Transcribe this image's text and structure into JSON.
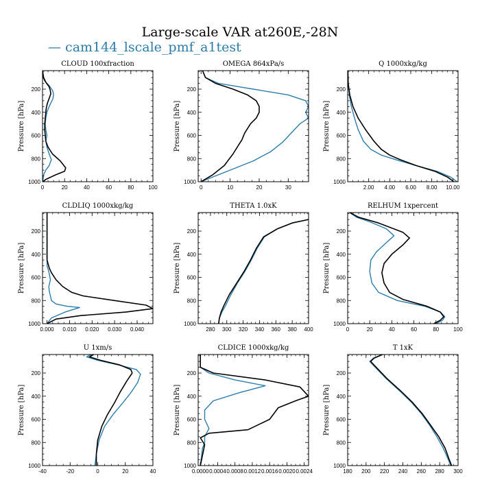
{
  "figure": {
    "title": "Large-scale VAR at260E,-28N",
    "legend": [
      {
        "name": "cam144_lscale_pmf_a1test",
        "color": "#2b7bab"
      }
    ],
    "ylabel": "Pressure [hPa]"
  },
  "chart_data": [
    {
      "type": "line",
      "title": "CLOUD  100xfraction",
      "xlabel": "",
      "ylabel": "Pressure [hPa]",
      "xlim": [
        0,
        100
      ],
      "ylim": [
        1000,
        40
      ],
      "y_inverted": true,
      "xticks": [
        0,
        20,
        40,
        60,
        80,
        100
      ],
      "xtick_labels": [
        "0",
        "20",
        "40",
        "60",
        "80",
        "100"
      ],
      "yticks": [
        200,
        400,
        600,
        800,
        1000
      ],
      "ytick_labels": [
        "200",
        "400",
        "600",
        "800",
        "1000"
      ],
      "series": [
        {
          "name": "cam144_lscale_pmf_a1test",
          "color": "#2b7bab",
          "x": [
            0,
            0.5,
            2,
            6,
            9,
            10,
            9.5,
            8,
            6,
            4,
            3,
            2.5,
            3,
            4,
            3,
            4,
            6,
            8,
            6,
            3,
            1,
            0.5,
            0.5
          ],
          "y": [
            40,
            100,
            130,
            170,
            210,
            240,
            280,
            310,
            350,
            400,
            450,
            500,
            550,
            600,
            650,
            700,
            760,
            810,
            860,
            900,
            940,
            980,
            1000
          ]
        },
        {
          "name": "",
          "color": "#000000",
          "x": [
            0,
            1,
            3,
            6,
            7,
            7.5,
            6,
            4.5,
            3.5,
            3,
            2.5,
            2,
            2,
            2.5,
            3,
            5,
            9,
            16,
            21,
            20,
            12,
            3,
            0.5
          ],
          "y": [
            40,
            100,
            140,
            180,
            210,
            240,
            280,
            320,
            360,
            400,
            450,
            500,
            550,
            600,
            650,
            700,
            760,
            820,
            880,
            910,
            940,
            980,
            1000
          ]
        }
      ]
    },
    {
      "type": "line",
      "title": "OMEGA  864xPa/s",
      "xlabel": "",
      "ylabel": "Pressure [hPa]",
      "xlim": [
        -1,
        37
      ],
      "ylim": [
        1000,
        40
      ],
      "y_inverted": true,
      "xticks": [
        0,
        10,
        20,
        30
      ],
      "xtick_labels": [
        "0",
        "10",
        "20",
        "30"
      ],
      "yticks": [
        200,
        400,
        600,
        800,
        1000
      ],
      "ytick_labels": [
        "200",
        "400",
        "600",
        "800",
        "1000"
      ],
      "series": [
        {
          "name": "cam144_lscale_pmf_a1test",
          "color": "#2b7bab",
          "x": [
            0.5,
            1.5,
            6,
            18,
            30,
            36,
            37,
            36,
            37,
            34,
            31,
            28,
            24,
            18,
            10,
            3,
            0
          ],
          "y": [
            40,
            100,
            150,
            200,
            250,
            300,
            350,
            400,
            450,
            500,
            580,
            660,
            740,
            820,
            900,
            970,
            1000
          ]
        },
        {
          "name": "",
          "color": "#000000",
          "x": [
            0.5,
            1.5,
            5,
            11,
            16,
            19,
            20,
            20,
            19,
            17,
            15,
            14,
            13.5,
            11,
            8,
            4,
            0
          ],
          "y": [
            40,
            100,
            150,
            200,
            250,
            300,
            350,
            400,
            450,
            500,
            580,
            640,
            660,
            760,
            860,
            940,
            1000
          ]
        }
      ]
    },
    {
      "type": "line",
      "title": "Q  1000xkg/kg",
      "xlabel": "",
      "ylabel": "Pressure [hPa]",
      "xlim": [
        0,
        10.5
      ],
      "ylim": [
        1000,
        40
      ],
      "y_inverted": true,
      "xticks": [
        2,
        4,
        6,
        8,
        10
      ],
      "xtick_labels": [
        "2.00",
        "4.00",
        "6.00",
        "8.00",
        "10.00"
      ],
      "yticks": [
        200,
        400,
        600,
        800,
        1000
      ],
      "ytick_labels": [
        "200",
        "400",
        "600",
        "800",
        "1000"
      ],
      "series": [
        {
          "name": "cam144_lscale_pmf_a1test",
          "color": "#2b7bab",
          "x": [
            0.02,
            0.05,
            0.15,
            0.35,
            0.65,
            1.0,
            1.5,
            2.2,
            3.2,
            4.6,
            6.5,
            8.5,
            9.8,
            10.4
          ],
          "y": [
            40,
            150,
            250,
            350,
            450,
            550,
            650,
            720,
            770,
            810,
            860,
            910,
            960,
            1000
          ]
        },
        {
          "name": "",
          "color": "#000000",
          "x": [
            0.02,
            0.05,
            0.2,
            0.5,
            1.0,
            1.7,
            2.5,
            3.2,
            4.0,
            5.0,
            6.5,
            8.3,
            9.5,
            10.1
          ],
          "y": [
            40,
            150,
            250,
            350,
            450,
            550,
            650,
            720,
            770,
            810,
            860,
            910,
            960,
            1000
          ]
        }
      ]
    },
    {
      "type": "line",
      "title": "CLDLIQ  1000xkg/kg",
      "xlabel": "",
      "ylabel": "Pressure [hPa]",
      "xlim": [
        -0.002,
        0.047
      ],
      "ylim": [
        1000,
        40
      ],
      "y_inverted": true,
      "xticks": [
        0,
        0.01,
        0.02,
        0.03,
        0.04
      ],
      "xtick_labels": [
        "0.000",
        "0.010",
        "0.020",
        "0.030",
        "0.040"
      ],
      "yticks": [
        200,
        400,
        600,
        800,
        1000
      ],
      "ytick_labels": [
        "200",
        "400",
        "600",
        "800",
        "1000"
      ],
      "series": [
        {
          "name": "cam144_lscale_pmf_a1test",
          "color": "#2b7bab",
          "x": [
            0,
            0,
            0,
            0.0008,
            0.0015,
            0.0008,
            0.001,
            0.0015,
            0.002,
            0.004,
            0.009,
            0.0145,
            0.008,
            0.002,
            0
          ],
          "y": [
            40,
            400,
            500,
            550,
            620,
            680,
            720,
            760,
            800,
            830,
            850,
            860,
            900,
            950,
            1000
          ]
        },
        {
          "name": "",
          "color": "#000000",
          "x": [
            0,
            0,
            0.001,
            0.002,
            0.004,
            0.007,
            0.011,
            0.016,
            0.03,
            0.044,
            0.047,
            0.035,
            0.015,
            0.004,
            0
          ],
          "y": [
            40,
            450,
            520,
            560,
            620,
            680,
            730,
            760,
            800,
            840,
            870,
            900,
            930,
            960,
            1000
          ]
        }
      ]
    },
    {
      "type": "line",
      "title": "THETA  1.0xK",
      "xlabel": "",
      "ylabel": "Pressure [hPa]",
      "xlim": [
        265,
        400
      ],
      "ylim": [
        1000,
        40
      ],
      "y_inverted": true,
      "xticks": [
        280,
        300,
        320,
        340,
        360,
        380,
        400
      ],
      "xtick_labels": [
        "280",
        "300",
        "320",
        "340",
        "360",
        "380",
        "400"
      ],
      "yticks": [
        200,
        400,
        600,
        800,
        1000
      ],
      "ytick_labels": [
        "200",
        "400",
        "600",
        "800",
        "1000"
      ],
      "series": [
        {
          "name": "cam144_lscale_pmf_a1test",
          "color": "#2b7bab",
          "x": [
            290,
            291,
            294,
            298,
            305,
            313,
            322,
            330,
            337,
            346,
            362,
            380,
            400
          ],
          "y": [
            1000,
            950,
            900,
            850,
            750,
            650,
            550,
            450,
            350,
            250,
            180,
            130,
            100
          ]
        },
        {
          "name": "",
          "color": "#000000",
          "x": [
            290,
            291,
            293,
            296,
            303,
            312,
            321,
            329,
            336,
            345,
            362,
            380,
            400
          ],
          "y": [
            1000,
            950,
            900,
            850,
            750,
            650,
            550,
            450,
            350,
            250,
            180,
            130,
            100
          ]
        }
      ]
    },
    {
      "type": "line",
      "title": "RELHUM  1xpercent",
      "xlabel": "",
      "ylabel": "Pressure [hPa]",
      "xlim": [
        0,
        100
      ],
      "ylim": [
        1000,
        40
      ],
      "y_inverted": true,
      "xticks": [
        0,
        20,
        40,
        60,
        80,
        100
      ],
      "xtick_labels": [
        "0",
        "20",
        "40",
        "60",
        "80",
        "100"
      ],
      "yticks": [
        200,
        400,
        600,
        800,
        1000
      ],
      "ytick_labels": [
        "200",
        "400",
        "600",
        "800",
        "1000"
      ],
      "series": [
        {
          "name": "cam144_lscale_pmf_a1test",
          "color": "#2b7bab",
          "x": [
            2,
            8,
            20,
            35,
            42,
            35,
            26,
            21,
            20,
            22,
            28,
            45,
            70,
            84,
            88,
            86,
            80
          ],
          "y": [
            40,
            80,
            120,
            180,
            240,
            300,
            380,
            450,
            550,
            650,
            730,
            800,
            850,
            900,
            940,
            970,
            1000
          ]
        },
        {
          "name": "",
          "color": "#000000",
          "x": [
            2,
            10,
            28,
            50,
            56,
            50,
            40,
            33,
            31,
            33,
            38,
            50,
            72,
            84,
            87,
            84,
            78
          ],
          "y": [
            40,
            80,
            130,
            210,
            260,
            320,
            400,
            480,
            560,
            650,
            730,
            790,
            850,
            900,
            940,
            970,
            1000
          ]
        }
      ]
    },
    {
      "type": "line",
      "title": "U  1xm/s",
      "xlabel": "",
      "ylabel": "Pressure [hPa]",
      "xlim": [
        -40,
        40
      ],
      "ylim": [
        1000,
        40
      ],
      "y_inverted": true,
      "xticks": [
        -40,
        -20,
        0,
        20,
        40
      ],
      "xtick_labels": [
        "-40",
        "-20",
        "0",
        "20",
        "40"
      ],
      "yticks": [
        200,
        400,
        600,
        800,
        1000
      ],
      "ytick_labels": [
        "200",
        "400",
        "600",
        "800",
        "1000"
      ],
      "series": [
        {
          "name": "cam144_lscale_pmf_a1test",
          "color": "#2b7bab",
          "x": [
            -5,
            -8,
            0,
            15,
            28,
            31,
            29,
            24,
            18,
            11,
            5,
            1,
            -1,
            -2
          ],
          "y": [
            40,
            60,
            90,
            130,
            170,
            210,
            280,
            370,
            460,
            560,
            660,
            780,
            900,
            1000
          ]
        },
        {
          "name": "",
          "color": "#000000",
          "x": [
            -3,
            -6,
            2,
            16,
            24,
            25,
            21,
            16,
            12,
            7,
            3,
            0,
            -1,
            -1
          ],
          "y": [
            40,
            60,
            90,
            130,
            170,
            200,
            270,
            370,
            460,
            560,
            660,
            780,
            900,
            1000
          ]
        }
      ]
    },
    {
      "type": "line",
      "title": "CLDICE  1000xkg/kg",
      "xlabel": "",
      "ylabel": "Pressure [hPa]",
      "xlim": [
        -5e-05,
        0.0025
      ],
      "ylim": [
        1000,
        40
      ],
      "y_inverted": true,
      "xticks": [
        0,
        0.0004,
        0.0008,
        0.0012,
        0.0016,
        0.002,
        0.0024
      ],
      "xtick_labels": [
        "0.0000",
        "0.0004",
        "0.0008",
        "0.0012",
        "0.0016",
        "0.0020",
        "0.0024"
      ],
      "yticks": [
        200,
        400,
        600,
        800,
        1000
      ],
      "ytick_labels": [
        "200",
        "400",
        "600",
        "800",
        "1000"
      ],
      "series": [
        {
          "name": "cam144_lscale_pmf_a1test",
          "color": "#2b7bab",
          "x": [
            0,
            0,
            0.0002,
            0.0008,
            0.0015,
            0.0009,
            0.0003,
            0.0001,
            0.0001,
            0.0002,
            0.0001,
            0.0001,
            5e-05,
            0
          ],
          "y": [
            40,
            150,
            200,
            260,
            310,
            370,
            440,
            520,
            600,
            680,
            750,
            800,
            850,
            1000
          ]
        },
        {
          "name": "",
          "color": "#000000",
          "x": [
            0,
            0,
            0.0003,
            0.0015,
            0.0023,
            0.0025,
            0.0022,
            0.0018,
            0.0016,
            0.0011,
            0.0002,
            0,
            0.0001,
            0
          ],
          "y": [
            40,
            150,
            200,
            260,
            320,
            400,
            440,
            500,
            600,
            690,
            720,
            760,
            820,
            1000
          ]
        }
      ]
    },
    {
      "type": "line",
      "title": "T  1xK",
      "xlabel": "",
      "ylabel": "Pressure [hPa]",
      "xlim": [
        180,
        300
      ],
      "ylim": [
        1000,
        40
      ],
      "y_inverted": true,
      "xticks": [
        180,
        200,
        220,
        240,
        260,
        280,
        300
      ],
      "xtick_labels": [
        "180",
        "200",
        "220",
        "240",
        "260",
        "280",
        "300"
      ],
      "yticks": [
        200,
        400,
        600,
        800,
        1000
      ],
      "ytick_labels": [
        "200",
        "400",
        "600",
        "800",
        "1000"
      ],
      "series": [
        {
          "name": "cam144_lscale_pmf_a1test",
          "color": "#2b7bab",
          "x": [
            218,
            208,
            204,
            210,
            222,
            236,
            249,
            260,
            269,
            277,
            284,
            289,
            292
          ],
          "y": [
            40,
            70,
            100,
            150,
            250,
            350,
            450,
            550,
            650,
            750,
            850,
            940,
            1000
          ]
        },
        {
          "name": "",
          "color": "#000000",
          "x": [
            218,
            209,
            205,
            211,
            223,
            237,
            250,
            261,
            270,
            279,
            286,
            290,
            293
          ],
          "y": [
            40,
            70,
            100,
            150,
            250,
            350,
            450,
            550,
            650,
            750,
            850,
            940,
            1000
          ]
        }
      ]
    }
  ]
}
